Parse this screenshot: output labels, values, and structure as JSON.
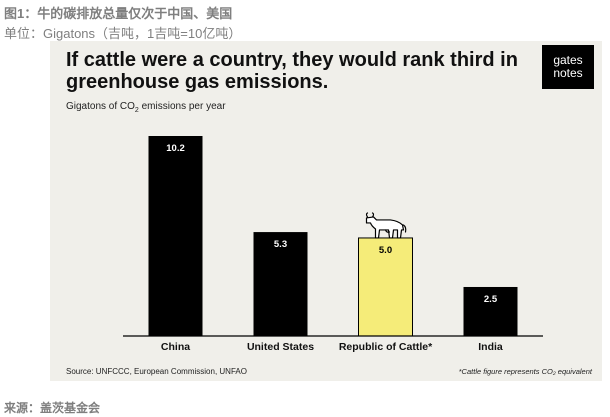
{
  "figure": {
    "title": "图1：牛的碳排放总量仅次于中国、美国",
    "unit": "单位：Gigatons（吉吨，1吉吨=10亿吨）",
    "source": "来源：盖茨基金会"
  },
  "panel": {
    "headline": "If cattle were a country, they would rank third in greenhouse gas emissions.",
    "logo_line1": "gates",
    "logo_line2": "notes",
    "subtitle_pre": "Gigatons of CO",
    "subtitle_sub": "2",
    "subtitle_post": " emissions per year",
    "source": "Source: UNFCCC, European Commission, UNFAO",
    "footnote": "*Cattle figure represents CO₂ equivalent"
  },
  "colors": {
    "panel_bg": "#f0efea",
    "bar_default": "#000000",
    "bar_highlight": "#f5ec79"
  },
  "icons": {
    "cow": "cow-icon",
    "logo": "gates-notes-logo"
  },
  "chart_data": {
    "type": "bar",
    "categories": [
      "China",
      "United States",
      "Republic of Cattle*",
      "India"
    ],
    "values": [
      10.2,
      5.3,
      5.0,
      2.5
    ],
    "value_labels": [
      "10.2",
      "5.3",
      "5.0",
      "2.5"
    ],
    "highlight_index": 2,
    "title": "If cattle were a country, they would rank third in greenhouse gas emissions.",
    "ylabel": "Gigatons of CO2 emissions per year",
    "xlabel": "",
    "ylim": [
      0,
      10.2
    ],
    "grid": false,
    "legend": "none"
  }
}
